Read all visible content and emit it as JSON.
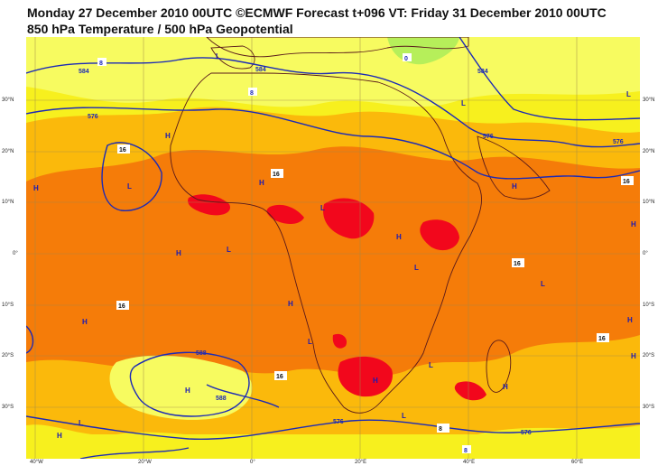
{
  "title_line1": "Monday 27 December 2010 00UTC ©ECMWF Forecast t+096 VT: Friday 31 December 2010 00UTC",
  "title_line2": "850 hPa Temperature / 500 hPa Geopotential",
  "axes": {
    "lon_ticks": [
      "40°W",
      "20°W",
      "0°",
      "20°E",
      "40°E",
      "60°E"
    ],
    "lat_ticks_left": [
      "30°N",
      "20°N",
      "10°N",
      "0°",
      "10°S",
      "20°S",
      "30°S"
    ],
    "lat_ticks_right": [
      "30°N",
      "20°N",
      "10°N",
      "0°",
      "10°S",
      "20°S",
      "30°S"
    ]
  },
  "colors": {
    "ocean_yellow": "#f7f01e",
    "pale_yellow": "#f7fb60",
    "light_orange": "#fbb90b",
    "orange": "#f57c09",
    "red": "#f2071c",
    "green": "#b6ef5a",
    "geopotential_line": "#1c2ab6",
    "coast": "#5a1a1a"
  },
  "geopotential_labels": [
    "584",
    "576",
    "584",
    "576",
    "576",
    "584",
    "588",
    "588",
    "576",
    "576"
  ],
  "temperature_labels": [
    "0",
    "8",
    "8",
    "16",
    "16",
    "16",
    "16",
    "16",
    "16",
    "16",
    "8",
    "8"
  ],
  "pressure_centers": [
    "L",
    "L",
    "L",
    "L",
    "H",
    "H",
    "H",
    "L",
    "H",
    "H",
    "L",
    "H",
    "H",
    "L",
    "L",
    "H",
    "H",
    "H",
    "H",
    "H",
    "L",
    "H",
    "H",
    "L",
    "L",
    "H",
    "L"
  ]
}
